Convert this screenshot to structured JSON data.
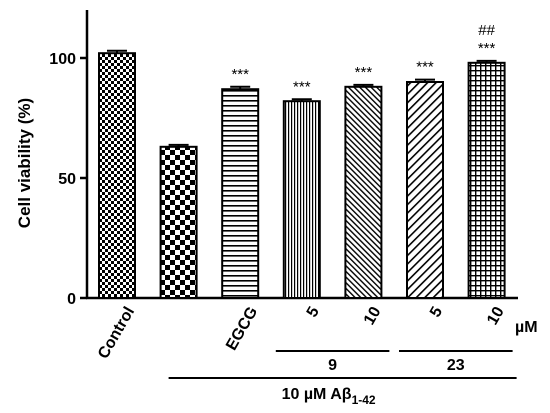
{
  "chart_data": {
    "type": "bar",
    "ylabel": "Cell viability (%)",
    "ylim": [
      0,
      120
    ],
    "yticks": [
      0,
      50,
      100
    ],
    "bars": [
      {
        "label": "Control",
        "value": 102,
        "error": 1.0,
        "sig": "",
        "sig2": "",
        "pattern": "checker-fine"
      },
      {
        "label": "",
        "value": 63,
        "error": 0.8,
        "sig": "",
        "sig2": "",
        "pattern": "checker-coarse"
      },
      {
        "label": "EGCG",
        "value": 87,
        "error": 1.0,
        "sig": "***",
        "sig2": "",
        "pattern": "horizontal"
      },
      {
        "label": "5",
        "value": 82,
        "error": 0.8,
        "sig": "***",
        "sig2": "",
        "pattern": "vertical"
      },
      {
        "label": "10",
        "value": 88,
        "error": 0.8,
        "sig": "***",
        "sig2": "",
        "pattern": "diag-fine"
      },
      {
        "label": "5",
        "value": 90,
        "error": 1.0,
        "sig": "***",
        "sig2": "",
        "pattern": "diag-coarse"
      },
      {
        "label": "10",
        "value": 98,
        "error": 0.8,
        "sig": "***",
        "sig2": "##",
        "pattern": "grid"
      }
    ],
    "unit_label": "µM",
    "groups": [
      {
        "label": "9",
        "from": 3,
        "to": 4
      },
      {
        "label": "23",
        "from": 5,
        "to": 6
      }
    ],
    "treatment": {
      "prefix": "10 µM A",
      "beta": "β",
      "sub": "1-42",
      "from": 1,
      "to": 6
    }
  }
}
